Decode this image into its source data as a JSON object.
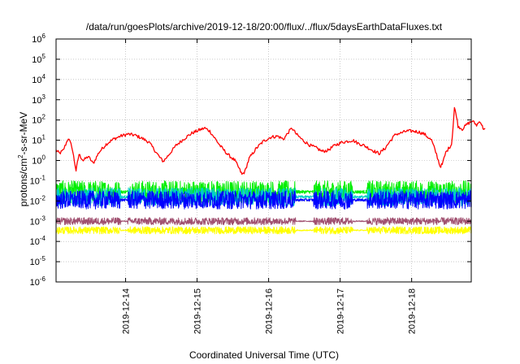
{
  "chart_data": {
    "type": "line",
    "title": "/data/run/goesPlots/archive/2019-12-18/20:00/flux/../flux/5daysEarthDataFluxes.txt",
    "xlabel": "Coordinated Universal Time (UTC)",
    "ylabel_base": "protons/cm",
    "ylabel_sup": "2",
    "ylabel_rest": "-s-sr-MeV",
    "yscale": "log",
    "ylim": [
      1e-06,
      1000000.0
    ],
    "y_ticks": [
      {
        "base": "10",
        "exp": "-6",
        "value": -6
      },
      {
        "base": "10",
        "exp": "-5",
        "value": -5
      },
      {
        "base": "10",
        "exp": "-4",
        "value": -4
      },
      {
        "base": "10",
        "exp": "-3",
        "value": -3
      },
      {
        "base": "10",
        "exp": "-2",
        "value": -2
      },
      {
        "base": "10",
        "exp": "-1",
        "value": -1
      },
      {
        "base": "10",
        "exp": "0",
        "value": 0
      },
      {
        "base": "10",
        "exp": "1",
        "value": 1
      },
      {
        "base": "10",
        "exp": "2",
        "value": 2
      },
      {
        "base": "10",
        "exp": "3",
        "value": 3
      },
      {
        "base": "10",
        "exp": "4",
        "value": 4
      },
      {
        "base": "10",
        "exp": "5",
        "value": 5
      },
      {
        "base": "10",
        "exp": "6",
        "value": 6
      }
    ],
    "x_start": "2019-12-13T00:40",
    "x_end": "2019-12-18T20:00",
    "x_ticks": [
      "2019-12-14",
      "2019-12-15",
      "2019-12-16",
      "2019-12-17",
      "2019-12-18"
    ],
    "grid": true,
    "series": [
      {
        "color": "#ff0000",
        "style": "smooth",
        "points": [
          [
            0.0,
            0.5
          ],
          [
            0.05,
            0.35
          ],
          [
            0.1,
            0.5
          ],
          [
            0.17,
            1.1
          ],
          [
            0.22,
            0.7
          ],
          [
            0.28,
            -0.5
          ],
          [
            0.32,
            0.3
          ],
          [
            0.38,
            0.0
          ],
          [
            0.45,
            0.2
          ],
          [
            0.52,
            -0.15
          ],
          [
            0.6,
            0.4
          ],
          [
            0.7,
            0.8
          ],
          [
            0.8,
            1.05
          ],
          [
            0.9,
            1.2
          ],
          [
            1.0,
            1.3
          ],
          [
            1.1,
            1.25
          ],
          [
            1.2,
            1.1
          ],
          [
            1.3,
            0.9
          ],
          [
            1.38,
            0.5
          ],
          [
            1.45,
            0.15
          ],
          [
            1.5,
            -0.05
          ],
          [
            1.58,
            0.3
          ],
          [
            1.68,
            0.75
          ],
          [
            1.8,
            1.1
          ],
          [
            1.9,
            1.35
          ],
          [
            2.0,
            1.5
          ],
          [
            2.08,
            1.6
          ],
          [
            2.15,
            1.45
          ],
          [
            2.22,
            1.1
          ],
          [
            2.3,
            0.7
          ],
          [
            2.4,
            0.3
          ],
          [
            2.5,
            0.0
          ],
          [
            2.56,
            -0.4
          ],
          [
            2.6,
            -0.7
          ],
          [
            2.64,
            -0.55
          ],
          [
            2.7,
            0.1
          ],
          [
            2.8,
            0.6
          ],
          [
            2.9,
            0.95
          ],
          [
            3.0,
            1.15
          ],
          [
            3.1,
            1.2
          ],
          [
            3.18,
            1.05
          ],
          [
            3.25,
            1.4
          ],
          [
            3.3,
            1.6
          ],
          [
            3.36,
            1.3
          ],
          [
            3.45,
            1.0
          ],
          [
            3.55,
            0.75
          ],
          [
            3.65,
            0.6
          ],
          [
            3.72,
            0.45
          ],
          [
            3.8,
            0.5
          ],
          [
            3.9,
            0.75
          ],
          [
            4.0,
            0.9
          ],
          [
            4.08,
            0.95
          ],
          [
            4.15,
            1.0
          ],
          [
            4.22,
            0.85
          ],
          [
            4.3,
            0.75
          ],
          [
            4.4,
            0.55
          ],
          [
            4.48,
            0.4
          ],
          [
            4.52,
            0.35
          ],
          [
            4.6,
            0.6
          ],
          [
            4.68,
            1.0
          ],
          [
            4.75,
            1.3
          ],
          [
            4.82,
            1.35
          ],
          [
            4.9,
            1.45
          ],
          [
            5.0,
            1.45
          ],
          [
            5.08,
            1.4
          ],
          [
            5.15,
            1.3
          ],
          [
            5.25,
            1.0
          ],
          [
            5.32,
            0.3
          ],
          [
            5.37,
            -0.3
          ],
          [
            5.4,
            -0.2
          ],
          [
            5.45,
            0.4
          ],
          [
            5.5,
            0.65
          ],
          [
            5.53,
            0.8
          ],
          [
            5.55,
            1.6
          ],
          [
            5.57,
            2.6
          ],
          [
            5.6,
            2.2
          ],
          [
            5.62,
            1.7
          ],
          [
            5.68,
            1.55
          ],
          [
            5.75,
            1.8
          ],
          [
            5.82,
            1.95
          ],
          [
            5.88,
            1.75
          ],
          [
            5.93,
            1.95
          ],
          [
            5.97,
            1.6
          ],
          [
            6.0,
            1.55
          ]
        ],
        "jitter": 0.08
      },
      {
        "color": "#00ee00",
        "style": "noise",
        "base": -1.55,
        "amplitude": 0.55,
        "gap_thin": [
          [
            0.9,
            1.0
          ],
          [
            3.35,
            3.6
          ],
          [
            4.15,
            4.35
          ]
        ]
      },
      {
        "color": "#00cccc",
        "style": "noise",
        "base": -1.8,
        "amplitude": 0.45,
        "gap_thin": [
          [
            0.9,
            1.0
          ],
          [
            3.35,
            3.6
          ],
          [
            4.15,
            4.35
          ]
        ]
      },
      {
        "color": "#0000ff",
        "style": "noise",
        "base": -1.95,
        "amplitude": 0.45,
        "gap_thin": [
          [
            0.9,
            1.0
          ],
          [
            3.35,
            3.6
          ],
          [
            4.15,
            4.35
          ]
        ]
      },
      {
        "color": "#ffff00",
        "style": "noise",
        "base": -3.45,
        "amplitude": 0.18,
        "gap_thin": [
          [
            0.9,
            1.0
          ],
          [
            3.35,
            3.6
          ],
          [
            4.15,
            4.35
          ]
        ]
      },
      {
        "color": "#a05070",
        "style": "noise",
        "base": -3.0,
        "amplitude": 0.18,
        "gap_thin": [
          [
            0.9,
            1.0
          ],
          [
            3.35,
            3.6
          ],
          [
            4.15,
            4.35
          ]
        ]
      }
    ]
  }
}
